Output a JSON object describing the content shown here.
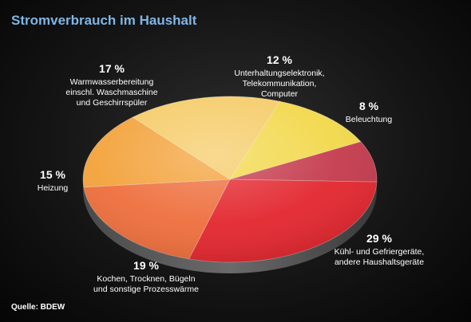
{
  "title": "Stromverbrauch im Haushalt",
  "source": "Quelle: BDEW",
  "chart_data": {
    "type": "pie",
    "title": "Stromverbrauch im Haushalt",
    "unit": "%",
    "slices": [
      {
        "value": 12,
        "percent_label": "12 %",
        "label_lines": [
          "Unterhaltungselektronik,",
          "Telekommunikation,",
          "Computer"
        ],
        "color": "#f2d84a"
      },
      {
        "value": 8,
        "percent_label": "8 %",
        "label_lines": [
          "Beleuchtung"
        ],
        "color": "#c43a4c"
      },
      {
        "value": 29,
        "percent_label": "29 %",
        "label_lines": [
          "Kühl- und Gefriergeräte,",
          "andere Haushaltsgeräte"
        ],
        "color": "#e3262e"
      },
      {
        "value": 19,
        "percent_label": "19 %",
        "label_lines": [
          "Kochen, Trocknen, Bügeln",
          "und sonstige Prozesswärme"
        ],
        "color": "#ee6e3c"
      },
      {
        "value": 15,
        "percent_label": "15 %",
        "label_lines": [
          "Heizung"
        ],
        "color": "#f3a23a"
      },
      {
        "value": 17,
        "percent_label": "17 %",
        "label_lines": [
          "Warmwasserbereitung",
          "einschl. Waschmaschine",
          "und Geschirrspüler"
        ],
        "color": "#f5cb66"
      }
    ]
  }
}
